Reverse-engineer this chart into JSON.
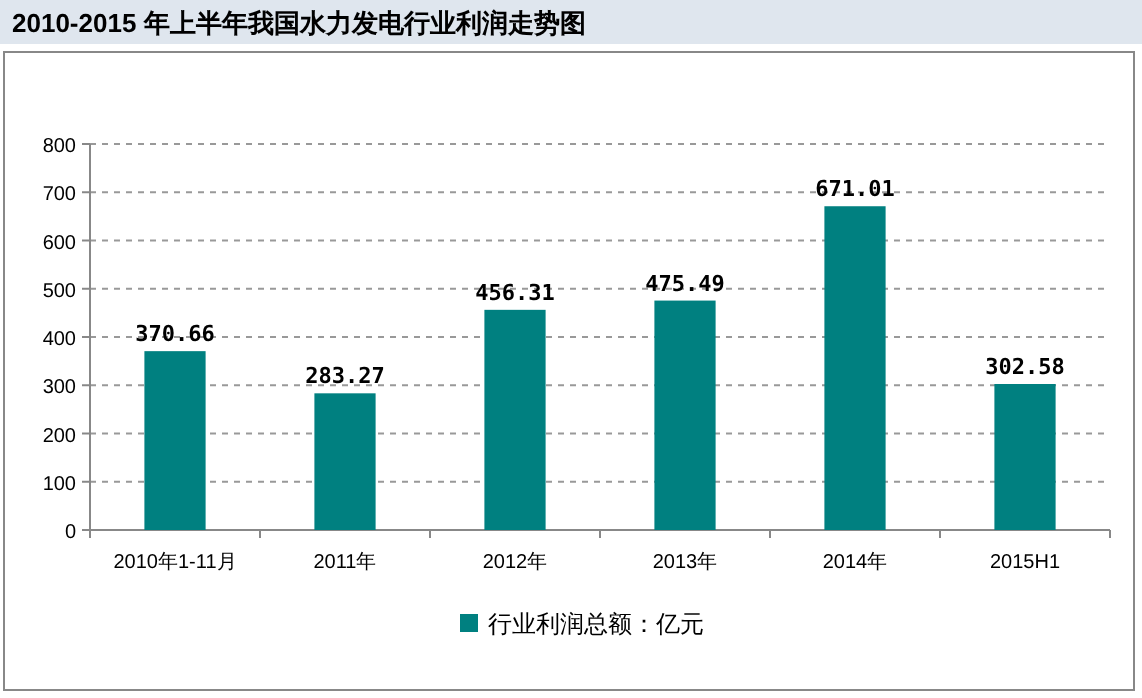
{
  "chart_data": {
    "type": "bar",
    "title": "2010-2015 年上半年我国水力发电行业利润走势图",
    "categories": [
      "2010年1-11月",
      "2011年",
      "2012年",
      "2013年",
      "2014年",
      "2015H1"
    ],
    "series": [
      {
        "name": "行业利润总额：亿元",
        "color": "#008080",
        "values": [
          370.66,
          283.27,
          456.31,
          475.49,
          671.01,
          302.58
        ]
      }
    ],
    "ylim": [
      0,
      800
    ],
    "yticks": [
      0,
      100,
      200,
      300,
      400,
      500,
      600,
      700,
      800
    ],
    "grid": "y",
    "legend": "bottom",
    "data_labels": true
  }
}
